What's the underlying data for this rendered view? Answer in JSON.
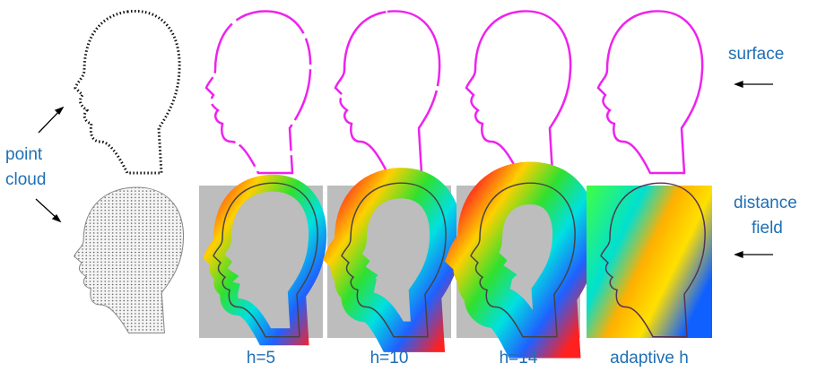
{
  "labels": {
    "point_cloud": [
      "point",
      "cloud"
    ],
    "surface": "surface",
    "distance_field": [
      "distance",
      "field"
    ]
  },
  "columns": [
    "h=5",
    "h=10",
    "h=14",
    "adaptive h"
  ]
}
